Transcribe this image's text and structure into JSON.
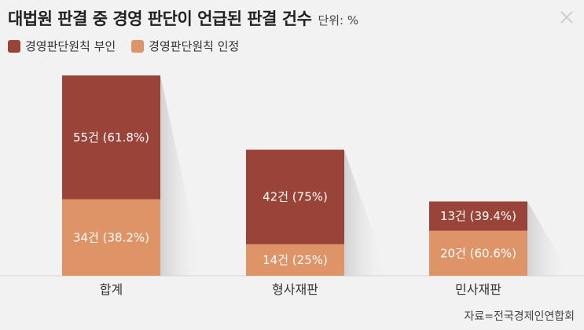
{
  "title": "대법원 판결 중 경영 판단이 언급된 판결 건수",
  "unit": "단위: %",
  "source": "자료=전국경제인연합회",
  "colors": {
    "denied": "#9a4338",
    "recognized": "#df9468",
    "background": "#f2f2f2"
  },
  "icons": {
    "close": "close-icon"
  },
  "chart_data": {
    "type": "bar",
    "stacked": true,
    "categories": [
      "합계",
      "형사재판",
      "민사재판"
    ],
    "series": [
      {
        "name": "경영판단원칙 부인",
        "values": [
          55,
          42,
          13
        ],
        "labels": [
          "55건 (61.8%)",
          "42건 (75%)",
          "13건 (39.4%)"
        ]
      },
      {
        "name": "경영판단원칙 인정",
        "values": [
          34,
          14,
          20
        ],
        "labels": [
          "34건 (38.2%)",
          "14건 (25%)",
          "20건 (60.6%)"
        ]
      }
    ],
    "legend": "top-left",
    "grid": false
  }
}
